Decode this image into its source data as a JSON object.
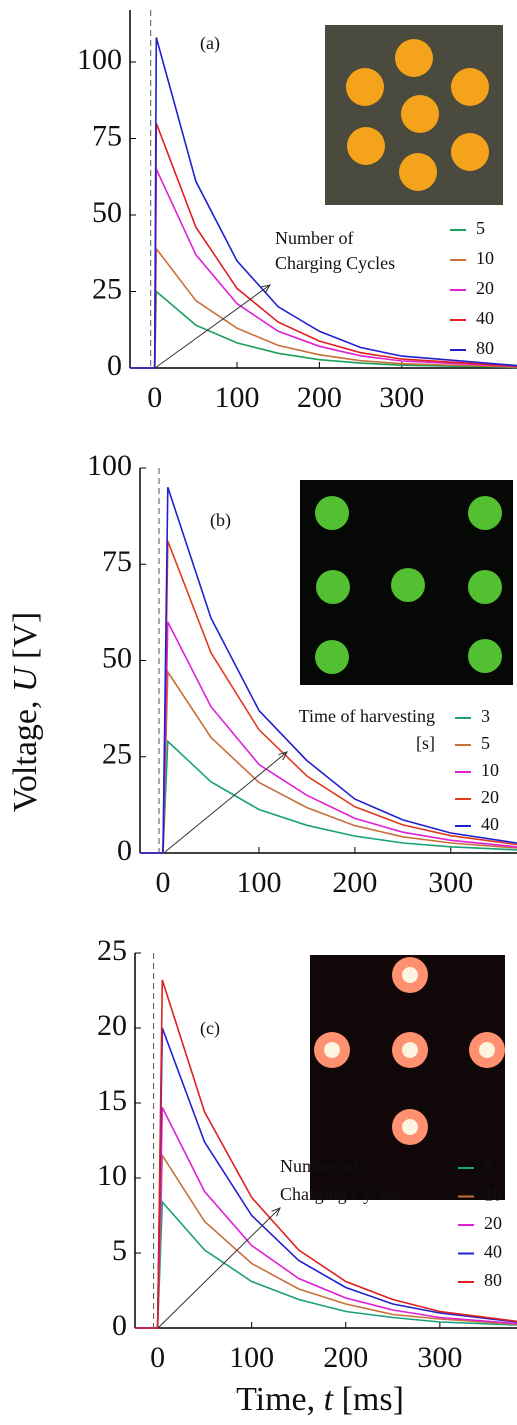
{
  "chart_data": [
    {
      "type": "line",
      "panel_label": "(a)",
      "legend_title": [
        "Number of",
        "Charging Cycles"
      ],
      "x": [
        -30,
        0,
        2,
        50,
        100,
        150,
        200,
        250,
        300,
        440
      ],
      "series": [
        {
          "name": "5",
          "color": "#1aa05a",
          "values": [
            0,
            0,
            25,
            14,
            8.2,
            4.8,
            2.7,
            1.6,
            0.9,
            0.2
          ]
        },
        {
          "name": "10",
          "color": "#c8703a",
          "values": [
            0,
            0,
            39,
            22,
            13,
            7.4,
            4.3,
            2.4,
            1.4,
            0.3
          ]
        },
        {
          "name": "20",
          "color": "#e020d8",
          "values": [
            0,
            0,
            65,
            37,
            21,
            12,
            7.1,
            4,
            2.3,
            0.5
          ]
        },
        {
          "name": "40",
          "color": "#e02020",
          "values": [
            0,
            0,
            80,
            46,
            26,
            15,
            8.8,
            5,
            2.9,
            0.6
          ]
        },
        {
          "name": "80",
          "color": "#2020d0",
          "values": [
            0,
            0,
            108,
            61,
            35,
            20,
            12,
            6.7,
            3.9,
            0.8
          ]
        }
      ],
      "xlim": [
        -30,
        440
      ],
      "ylim": [
        0,
        117
      ],
      "xticks": [
        0,
        100,
        200,
        300
      ],
      "yticks": [
        0,
        25,
        50,
        75,
        100
      ]
    },
    {
      "type": "line",
      "panel_label": "(b)",
      "legend_title": [
        "Time of harvesting",
        "[s]"
      ],
      "x": [
        -24,
        0,
        5,
        50,
        100,
        150,
        200,
        250,
        300,
        369
      ],
      "series": [
        {
          "name": "3",
          "color": "#1aa07a",
          "values": [
            0,
            0,
            29,
            18.5,
            11.3,
            7.2,
            4.4,
            2.6,
            1.6,
            0.8
          ]
        },
        {
          "name": "5",
          "color": "#c8703a",
          "values": [
            0,
            0,
            47,
            30,
            18.3,
            11.8,
            7.1,
            4.2,
            2.6,
            1.3
          ]
        },
        {
          "name": "10",
          "color": "#e020d8",
          "values": [
            0,
            0,
            60,
            38,
            23,
            15,
            9,
            5.4,
            3.3,
            1.6
          ]
        },
        {
          "name": "20",
          "color": "#e03a20",
          "values": [
            0,
            0,
            81,
            52,
            32,
            20,
            12,
            7.3,
            4.5,
            2.2
          ]
        },
        {
          "name": "40",
          "color": "#2020d0",
          "values": [
            0,
            0,
            95,
            61,
            37,
            24,
            14,
            8.6,
            5.2,
            2.6
          ]
        }
      ],
      "xlim": [
        -24,
        369
      ],
      "ylim": [
        0,
        100
      ],
      "xticks": [
        0,
        100,
        200,
        300
      ],
      "yticks": [
        0,
        25,
        50,
        75,
        100
      ]
    },
    {
      "type": "line",
      "panel_label": "(c)",
      "legend_title": [
        "Number of",
        "Charging Cycles"
      ],
      "x": [
        -24,
        0,
        5,
        50,
        100,
        150,
        200,
        250,
        300,
        382
      ],
      "series": [
        {
          "name": "5",
          "color": "#1aa07a",
          "values": [
            0,
            0,
            8.4,
            5.2,
            3.1,
            1.9,
            1.1,
            0.7,
            0.4,
            0.2
          ]
        },
        {
          "name": "10",
          "color": "#c8703a",
          "values": [
            0,
            0,
            11.5,
            7.1,
            4.3,
            2.6,
            1.6,
            0.9,
            0.6,
            0.25
          ]
        },
        {
          "name": "20",
          "color": "#e020d8",
          "values": [
            0,
            0,
            14.7,
            9.1,
            5.5,
            3.3,
            2,
            1.2,
            0.7,
            0.3
          ]
        },
        {
          "name": "40",
          "color": "#2020d0",
          "values": [
            0,
            0,
            20,
            12.4,
            7.5,
            4.5,
            2.7,
            1.6,
            1,
            0.4
          ]
        },
        {
          "name": "80",
          "color": "#e02020",
          "values": [
            0,
            0,
            23.2,
            14.4,
            8.7,
            5.2,
            3.1,
            1.9,
            1.1,
            0.45
          ]
        }
      ],
      "xlim": [
        -24,
        382
      ],
      "ylim": [
        0,
        25
      ],
      "xticks": [
        0,
        100,
        200,
        300
      ],
      "yticks": [
        0,
        5,
        10,
        15,
        20,
        25
      ]
    }
  ],
  "y_label": [
    "Voltage, ",
    "U",
    " [V]"
  ],
  "x_label": [
    "Time, ",
    "t",
    " [ms]"
  ]
}
